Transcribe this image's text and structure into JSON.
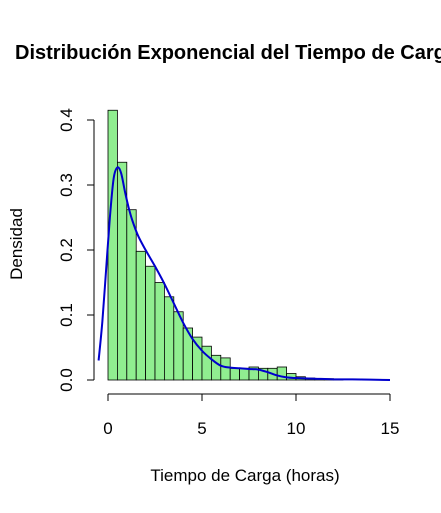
{
  "chart_data": {
    "type": "bar",
    "title": "Distribución Exponencial del Tiempo de Carga",
    "xlabel": "Tiempo de Carga (horas)",
    "ylabel": "Densidad",
    "xlim": [
      0,
      15
    ],
    "ylim": [
      0,
      0.4
    ],
    "x_ticks": [
      "0",
      "5",
      "10",
      "15"
    ],
    "y_ticks": [
      "0.0",
      "0.1",
      "0.2",
      "0.3",
      "0.4"
    ],
    "grid": false,
    "legend": "none",
    "bin_width": 0.5,
    "bin_start": 0,
    "histogram_density": [
      0.415,
      0.335,
      0.262,
      0.198,
      0.175,
      0.15,
      0.128,
      0.105,
      0.08,
      0.066,
      0.052,
      0.038,
      0.034,
      0.018,
      0.018,
      0.02,
      0.018,
      0.018,
      0.02,
      0.01,
      0.005,
      0.003,
      0.002,
      0.002,
      0.001
    ],
    "density_curve": {
      "x": [
        -0.5,
        -0.3,
        -0.1,
        0.1,
        0.3,
        0.5,
        0.7,
        0.9,
        1.1,
        1.3,
        1.6,
        2.0,
        2.5,
        3.0,
        3.5,
        4.0,
        4.5,
        5.0,
        5.5,
        6.0,
        6.5,
        7.0,
        7.5,
        8.0,
        8.5,
        9.0,
        9.5,
        10.0,
        11.0,
        12.0,
        13.0,
        15.0
      ],
      "y": [
        0.03,
        0.09,
        0.17,
        0.25,
        0.31,
        0.327,
        0.318,
        0.29,
        0.265,
        0.245,
        0.222,
        0.2,
        0.175,
        0.148,
        0.118,
        0.088,
        0.063,
        0.045,
        0.032,
        0.022,
        0.019,
        0.018,
        0.017,
        0.016,
        0.012,
        0.007,
        0.004,
        0.003,
        0.002,
        0.001,
        0.001,
        0.0
      ]
    },
    "colors": {
      "bar_fill": "#90EE90",
      "bar_stroke": "#000000",
      "curve": "#0000CD",
      "axis": "#000000"
    }
  }
}
